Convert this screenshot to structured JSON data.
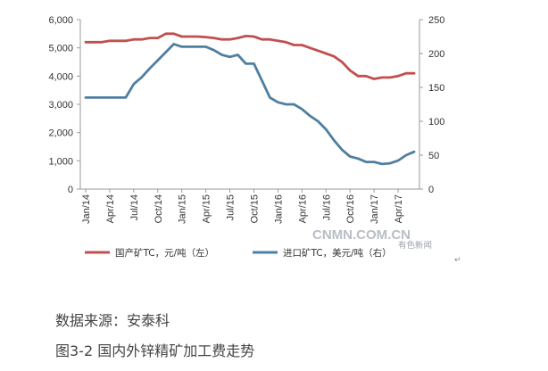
{
  "chart_data": {
    "type": "line",
    "x": [
      "Jan/14",
      "Feb/14",
      "Mar/14",
      "Apr/14",
      "May/14",
      "Jun/14",
      "Jul/14",
      "Aug/14",
      "Sep/14",
      "Oct/14",
      "Nov/14",
      "Dec/14",
      "Jan/15",
      "Feb/15",
      "Mar/15",
      "Apr/15",
      "May/15",
      "Jun/15",
      "Jul/15",
      "Aug/15",
      "Sep/15",
      "Oct/15",
      "Nov/15",
      "Dec/15",
      "Jan/16",
      "Feb/16",
      "Mar/16",
      "Apr/16",
      "May/16",
      "Jun/16",
      "Jul/16",
      "Aug/16",
      "Sep/16",
      "Oct/16",
      "Nov/16",
      "Dec/16",
      "Jan/17",
      "Feb/17",
      "Mar/17",
      "Apr/17",
      "May/17",
      "Jun/17"
    ],
    "xtick_labels": [
      "Jan/14",
      "Apr/14",
      "Jul/14",
      "Oct/14",
      "Jan/15",
      "Apr/15",
      "Jul/15",
      "Oct/15",
      "Jan/16",
      "Apr/16",
      "Jul/16",
      "Oct/16",
      "Jan/17",
      "Apr/17"
    ],
    "series": [
      {
        "name": "国产矿TC，元/吨（左）",
        "axis": "left",
        "color": "#c0504d",
        "values": [
          5200,
          5200,
          5200,
          5250,
          5250,
          5250,
          5300,
          5300,
          5350,
          5350,
          5500,
          5500,
          5400,
          5400,
          5400,
          5380,
          5350,
          5300,
          5300,
          5350,
          5420,
          5400,
          5300,
          5300,
          5250,
          5200,
          5100,
          5100,
          5000,
          4900,
          4800,
          4700,
          4500,
          4200,
          4000,
          4000,
          3900,
          3950,
          3950,
          4000,
          4100,
          4100
        ]
      },
      {
        "name": "进口矿TC，美元/吨（右）",
        "axis": "right",
        "color": "#4f7fa0",
        "values": [
          135,
          135,
          135,
          135,
          135,
          135,
          155,
          165,
          178,
          190,
          202,
          214,
          210,
          210,
          210,
          210,
          205,
          198,
          195,
          198,
          185,
          185,
          160,
          135,
          128,
          125,
          125,
          118,
          108,
          100,
          88,
          72,
          58,
          48,
          45,
          40,
          40,
          37,
          38,
          42,
          50,
          55
        ]
      }
    ],
    "ylim_left": [
      0,
      6000
    ],
    "yticks_left": [
      "0",
      "1,000",
      "2,000",
      "3,000",
      "4,000",
      "5,000",
      "6,000"
    ],
    "ylim_right": [
      0,
      250
    ],
    "yticks_right": [
      "0",
      "50",
      "100",
      "150",
      "200",
      "250"
    ],
    "grid": false,
    "legend_position": "bottom"
  },
  "watermark": {
    "main": "CNMN.COM.CN",
    "sub": "有色新闻"
  },
  "legend_mark": "↵",
  "source": "数据来源：安泰科",
  "caption": "图3-2 国内外锌精矿加工费走势"
}
